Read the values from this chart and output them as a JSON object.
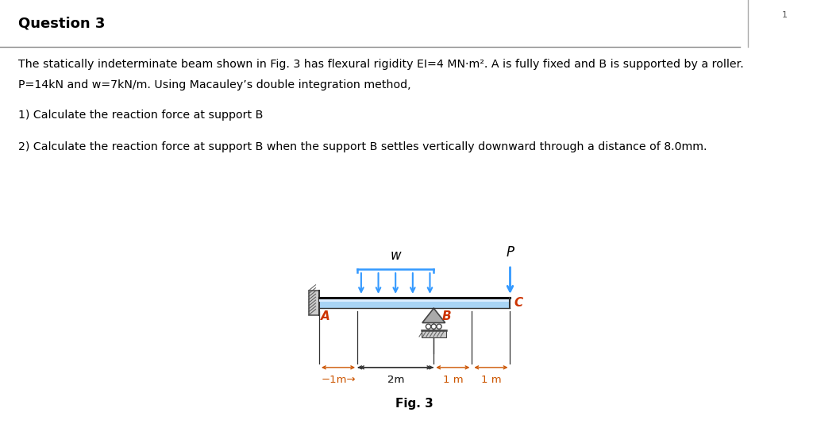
{
  "title": "Question 3",
  "title_bg_color": "#d4d4d4",
  "bg_color": "#ffffff",
  "line1": "The statically indeterminate beam shown in Fig. 3 has flexural rigidity EI=4 MN·m². A is fully fixed and B is supported by a roller.",
  "line2": "P=14kN and w=7kN/m. Using Macauley’s double integration method,",
  "line3": "1) Calculate the reaction force at support B",
  "line4": "2) Calculate the reaction force at support B when the support B settles vertically downward through a distance of 8.0mm.",
  "fig_caption": "Fig. 3",
  "beam_color_top": "#c8e6fa",
  "beam_color_mid": "#a8d4f5",
  "beam_edge_color": "#111111",
  "arrow_color": "#3399ff",
  "dim_color": "#cc5500",
  "text_color": "#000000",
  "label_A": "A",
  "label_B": "B",
  "label_C": "C",
  "label_w": "w",
  "label_P": "P",
  "dim1": "−1m→",
  "dim2": "2m",
  "dim3": "1 m",
  "dim4": "1 m",
  "page_num": "1"
}
